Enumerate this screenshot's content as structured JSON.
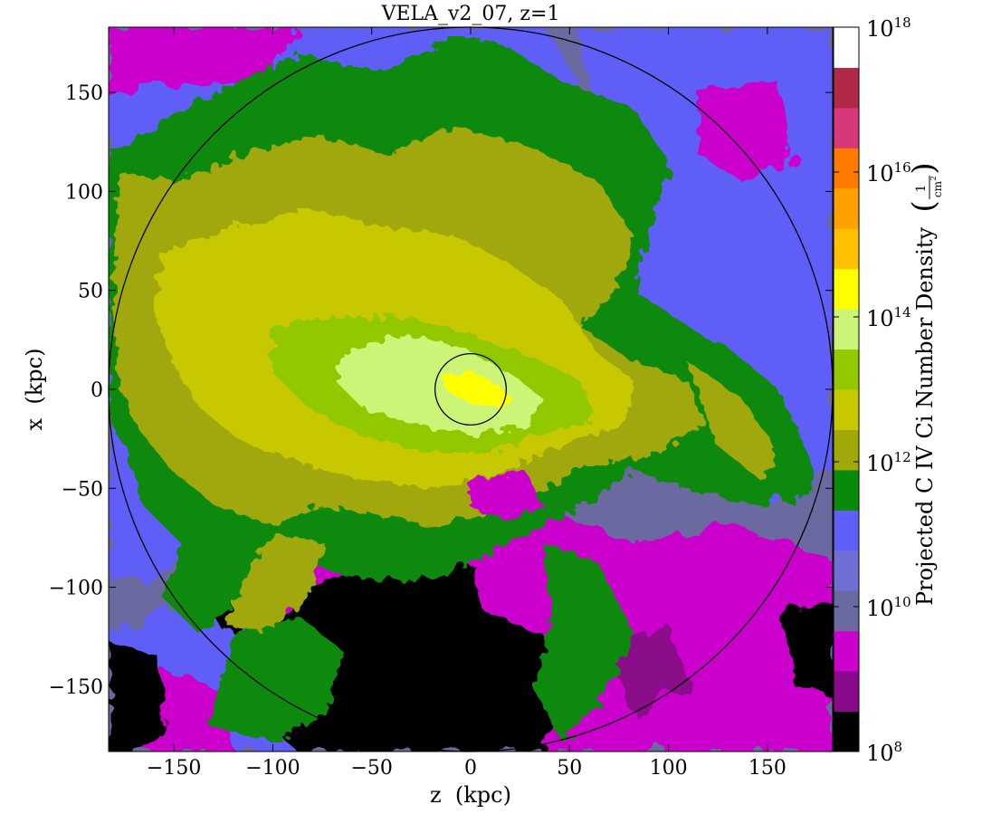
{
  "chart_data": {
    "type": "heatmap",
    "title": "VELA_v2_07, z=1",
    "xlabel": "z  (kpc)",
    "ylabel": "x  (kpc)",
    "xlim": [
      -183,
      183
    ],
    "ylim": [
      -183,
      183
    ],
    "x_ticks": [
      -150,
      -100,
      -50,
      0,
      50,
      100,
      150
    ],
    "y_ticks": [
      -150,
      -100,
      -50,
      0,
      50,
      100,
      150
    ],
    "x_tick_labels": [
      "−150",
      "−100",
      "−50",
      "0",
      "50",
      "100",
      "150"
    ],
    "y_tick_labels": [
      "−150",
      "−100",
      "−50",
      "0",
      "50",
      "100",
      "150"
    ],
    "colorbar": {
      "label": "Projected C IV Ci Number Density",
      "unit_numerator": "1",
      "unit_denominator": "cm",
      "unit_exponent": "2",
      "scale": "log",
      "range": [
        8,
        18
      ],
      "tick_base": "10",
      "tick_exponents": [
        "8",
        "10",
        "12",
        "14",
        "16",
        "18"
      ],
      "colors": [
        "#000000",
        "#8a088a",
        "#cc00cc",
        "#6a6aa0",
        "#6f6fd6",
        "#5f5ff8",
        "#0a8a0a",
        "#a0a80a",
        "#c8c800",
        "#92c800",
        "#ccf578",
        "#ffff00",
        "#ffc000",
        "#ffa000",
        "#ff7a00",
        "#d8387a",
        "#b02a48",
        "#ffffff"
      ]
    },
    "circles": [
      {
        "center": [
          0,
          0
        ],
        "radius": 183
      },
      {
        "center": [
          0,
          0
        ],
        "radius": 18
      }
    ],
    "field_notes": {
      "background": "#6a6aa0",
      "central_peak": "#ffff00",
      "disk_region": "#c8c800",
      "filaments": "#0a8a0a",
      "low_density_south": "#cc00cc",
      "voids": "#000000"
    }
  }
}
